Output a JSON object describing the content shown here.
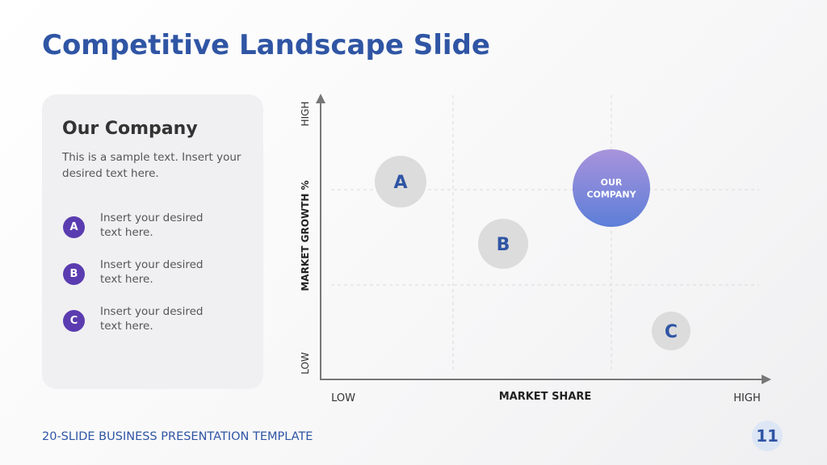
{
  "title": "Competitive Landscape Slide",
  "panel": {
    "heading": "Our Company",
    "body": "This is a sample text. Insert your desired text here.",
    "items": [
      {
        "letter": "A",
        "text": "Insert your desired text here."
      },
      {
        "letter": "B",
        "text": "Insert your desired text here."
      },
      {
        "letter": "C",
        "text": "Insert your desired text here."
      }
    ]
  },
  "matrix": {
    "y_axis_label": "MARKET GROWTH %",
    "y_high": "HIGH",
    "y_low": "LOW",
    "x_axis_label": "MARKET SHARE",
    "x_low": "LOW",
    "x_high": "HIGH",
    "bubbles": [
      {
        "label": [
          "A"
        ]
      },
      {
        "label": [
          "B"
        ]
      },
      {
        "label": [
          "OUR",
          "COMPANY"
        ]
      },
      {
        "label": [
          "C"
        ]
      }
    ]
  },
  "footer": {
    "text": "20-SLIDE BUSINESS PRESENTATION TEMPLATE",
    "page": "11"
  }
}
